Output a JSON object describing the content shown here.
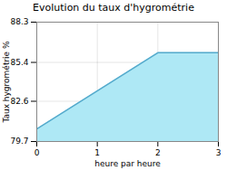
{
  "chart_data": {
    "type": "area",
    "title": "Evolution du taux d'hygrométrie",
    "xlabel": "heure par heure",
    "ylabel": "Taux hygrométrie %",
    "x": [
      0,
      2,
      3
    ],
    "values": [
      80.6,
      86.1,
      86.1
    ],
    "colors": [
      "#aee8f5",
      "#55aacc"
    ],
    "xlim": [
      0,
      3
    ],
    "xticks": [
      0,
      1,
      2,
      3
    ],
    "ylim": [
      79.7,
      88.3
    ],
    "yticks": [
      79.7,
      82.6,
      85.4,
      88.3
    ],
    "grid": true
  }
}
